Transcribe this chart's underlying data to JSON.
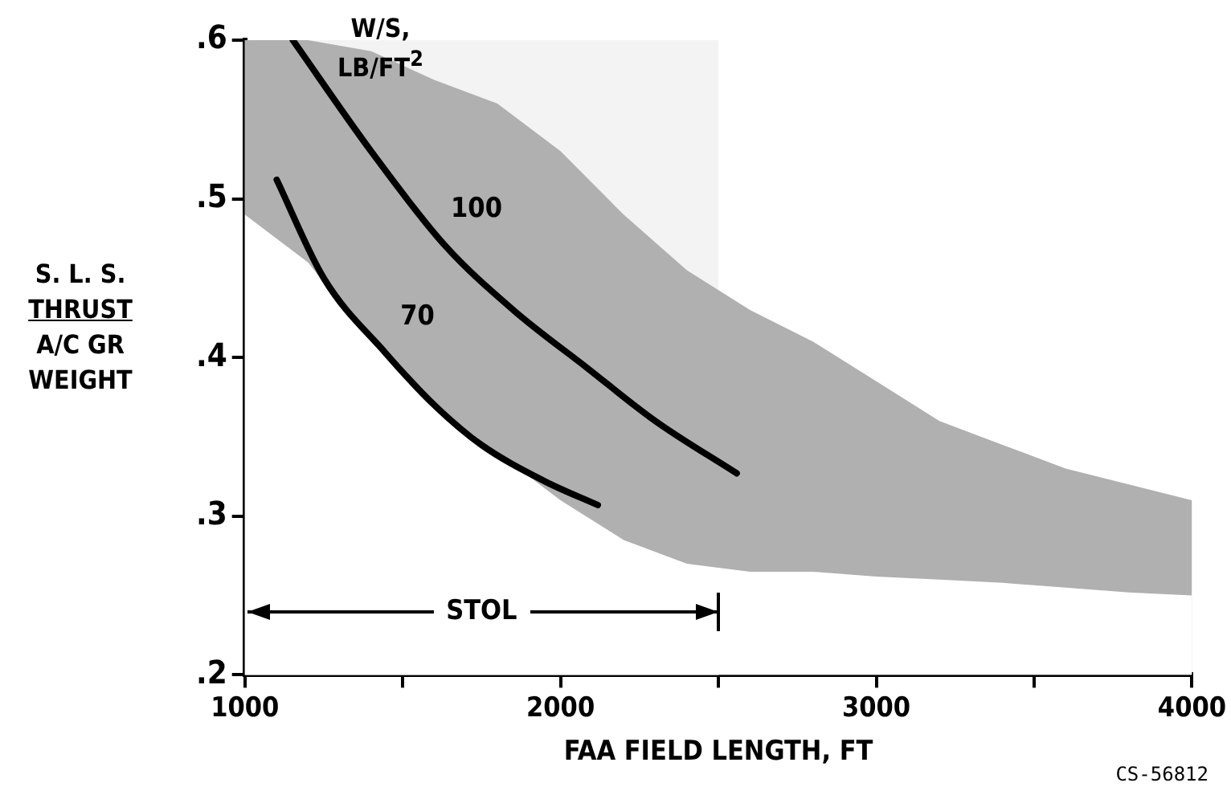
{
  "chart_data": {
    "type": "line",
    "xlabel": "FAA FIELD LENGTH, FT",
    "ylabel": "S. L. S.\nTHRUST\nA/C GR\nWEIGHT",
    "legend_title": "W/S,\nLB/FT$^{2}$",
    "annotations": [
      "CS-56812"
    ],
    "bands": [
      {
        "axis": "x",
        "from": 1000,
        "to": 2500,
        "label": "STOL",
        "color": "#f3f3f3"
      }
    ],
    "xlim": [
      1000,
      4000
    ],
    "xticks": [
      1000,
      {
        "value": 1500,
        "label": null
      },
      2000,
      {
        "value": 2500,
        "label": null
      },
      3000,
      {
        "value": 3500,
        "label": null
      },
      4000
    ],
    "ylim": [
      0.2,
      0.6
    ],
    "yticks": [
      {
        "value": 0.2,
        "label": ".2"
      },
      {
        "value": 0.3,
        "label": ".3"
      },
      {
        "value": 0.4,
        "label": ".4"
      },
      {
        "value": 0.5,
        "label": ".5"
      },
      {
        "value": 0.6,
        "label": ".6"
      }
    ],
    "grid": false,
    "marker": "none",
    "line_style": "solid",
    "series": [
      {
        "type": "area",
        "color": "#b0b0b0",
        "x": [
          1000,
          1200,
          1400,
          1600,
          1800,
          2000,
          2200,
          2400,
          2600,
          2800,
          3000,
          3200,
          3400,
          3600,
          3800,
          4000
        ],
        "values": [
          0.6,
          0.6,
          0.593,
          0.575,
          0.56,
          0.53,
          0.49,
          0.455,
          0.43,
          0.41,
          0.385,
          0.36,
          0.345,
          0.33,
          0.32,
          0.31
        ]
      },
      {
        "type": "area",
        "color": "#ffffff",
        "x": [
          1000,
          1200,
          1400,
          1600,
          1800,
          2000,
          2200,
          2400,
          2600,
          2800,
          3000,
          3200,
          3400,
          3600,
          3800,
          4000
        ],
        "values": [
          0.49,
          0.46,
          0.41,
          0.37,
          0.34,
          0.31,
          0.285,
          0.27,
          0.265,
          0.265,
          0.262,
          0.26,
          0.258,
          0.255,
          0.252,
          0.25
        ]
      },
      {
        "name": "100",
        "color": "#000000",
        "x": [
          1152,
          1400,
          1632,
          1850,
          2087,
          2300,
          2558
        ],
        "values": [
          0.6,
          0.53,
          0.471,
          0.43,
          0.393,
          0.36,
          0.327
        ]
      },
      {
        "name": "70",
        "color": "#000000",
        "x": [
          1101,
          1250,
          1445,
          1600,
          1749,
          1950,
          2118
        ],
        "values": [
          0.512,
          0.45,
          0.403,
          0.37,
          0.345,
          0.322,
          0.307
        ]
      }
    ]
  }
}
